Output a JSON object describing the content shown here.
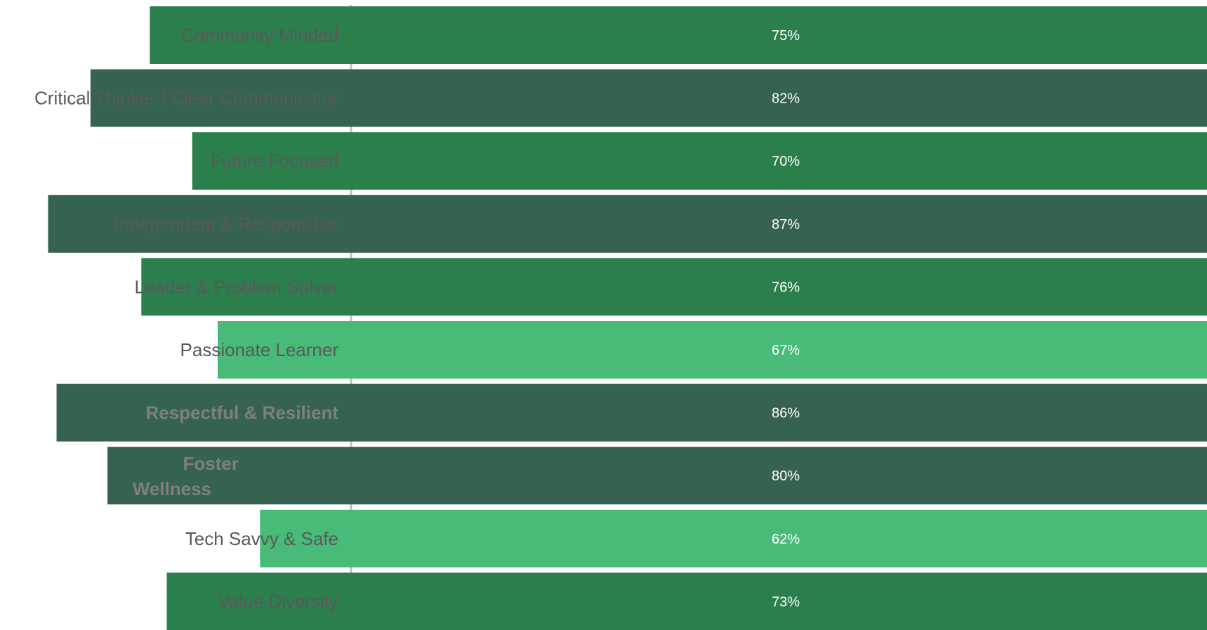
{
  "chart_data": {
    "type": "bar",
    "orientation": "horizontal",
    "layout": "funnel",
    "categories": [
      "Community Minded",
      "Critical Thinker / Clear Communicator",
      "Future Focused",
      "Independent & Responsible",
      "Leader & Problem Solver",
      "Passionate Learner",
      "Respectful & Resilient",
      "Foster Wellness",
      "Tech Savvy & Safe",
      "Value Diversity"
    ],
    "values": [
      75,
      82,
      70,
      87,
      76,
      67,
      86,
      80,
      62,
      73
    ],
    "data_labels": [
      "75%",
      "82%",
      "70%",
      "87%",
      "76%",
      "67%",
      "86%",
      "80%",
      "62%",
      "73%"
    ],
    "bold_categories": [
      "Respectful & Resilient",
      "Foster Wellness"
    ],
    "grid": false,
    "legend": "none",
    "colors": {
      "high": "#35634f",
      "mid": "#2b7f4d",
      "low": "#48bb78",
      "axis": "#bfbfbf",
      "label": "#595959"
    }
  }
}
